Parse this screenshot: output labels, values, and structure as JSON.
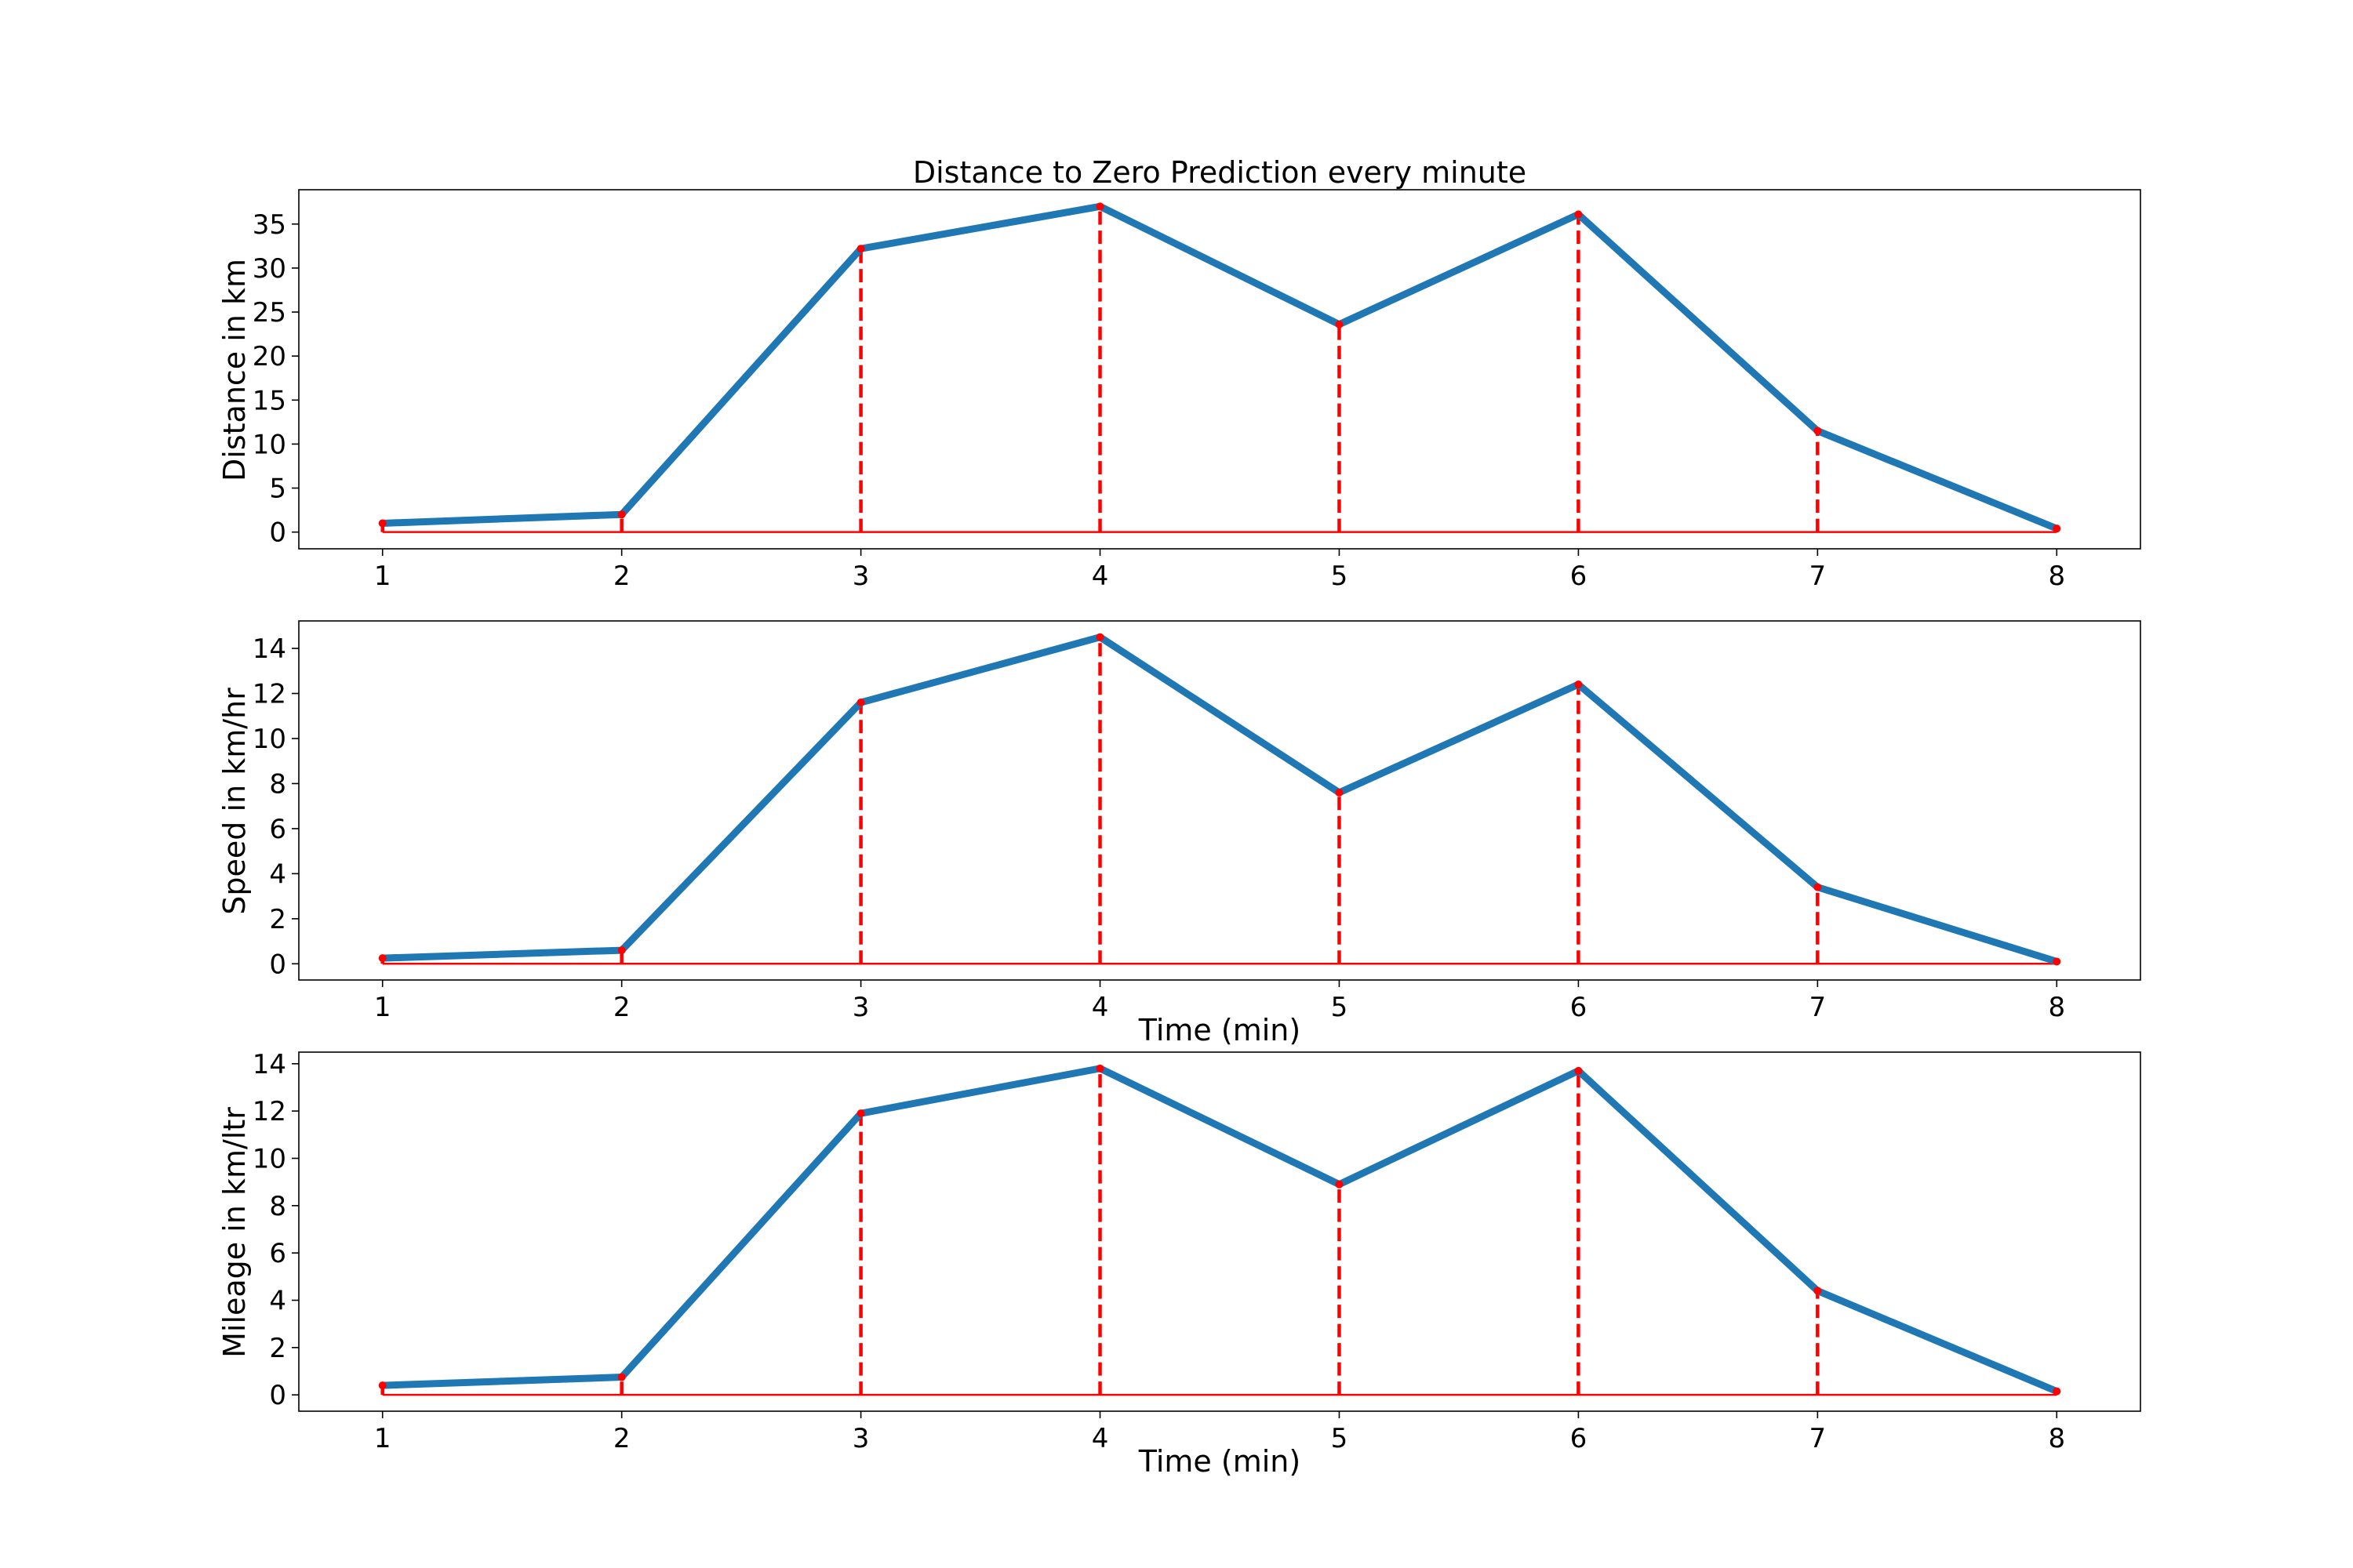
{
  "colors": {
    "series_line": "#1f77b4",
    "stem": "#ff0000",
    "baseline": "#ff0000",
    "marker": "#ff0000",
    "frame": "#000000"
  },
  "chart_data": [
    {
      "type": "line",
      "title": "Distance to Zero Prediction every minute",
      "xlabel": "",
      "ylabel": "Distance in km",
      "x": [
        1,
        2,
        3,
        4,
        5,
        6,
        7,
        8
      ],
      "series": [
        {
          "values": [
            1.0,
            2.0,
            32.2,
            37.0,
            23.6,
            36.1,
            11.5,
            0.4
          ]
        }
      ],
      "xticks": [
        1,
        2,
        3,
        4,
        5,
        6,
        7,
        8
      ],
      "yticks": [
        0,
        5,
        10,
        15,
        20,
        25,
        30,
        35
      ],
      "xlim": [
        0.65,
        8.35
      ],
      "ylim": [
        -1.9,
        38.9
      ],
      "stems": true,
      "grid": false,
      "legend": "none"
    },
    {
      "type": "line",
      "title": "",
      "xlabel": "Time (min)",
      "ylabel": "Speed in km/hr",
      "x": [
        1,
        2,
        3,
        4,
        5,
        6,
        7,
        8
      ],
      "series": [
        {
          "values": [
            0.25,
            0.6,
            11.6,
            14.5,
            7.6,
            12.4,
            3.4,
            0.1
          ]
        }
      ],
      "xticks": [
        1,
        2,
        3,
        4,
        5,
        6,
        7,
        8
      ],
      "yticks": [
        0,
        2,
        4,
        6,
        8,
        10,
        12,
        14
      ],
      "xlim": [
        0.65,
        8.35
      ],
      "ylim": [
        -0.72,
        15.22
      ],
      "stems": true,
      "grid": false,
      "legend": "none"
    },
    {
      "type": "line",
      "title": "",
      "xlabel": "Time (min)",
      "ylabel": "Mileage in km/ltr",
      "x": [
        1,
        2,
        3,
        4,
        5,
        6,
        7,
        8
      ],
      "series": [
        {
          "values": [
            0.4,
            0.75,
            11.9,
            13.8,
            8.9,
            13.7,
            4.4,
            0.15
          ]
        }
      ],
      "xticks": [
        1,
        2,
        3,
        4,
        5,
        6,
        7,
        8
      ],
      "yticks": [
        0,
        2,
        4,
        6,
        8,
        10,
        12,
        14
      ],
      "xlim": [
        0.65,
        8.35
      ],
      "ylim": [
        -0.69,
        14.49
      ],
      "stems": true,
      "grid": false,
      "legend": "none"
    }
  ]
}
